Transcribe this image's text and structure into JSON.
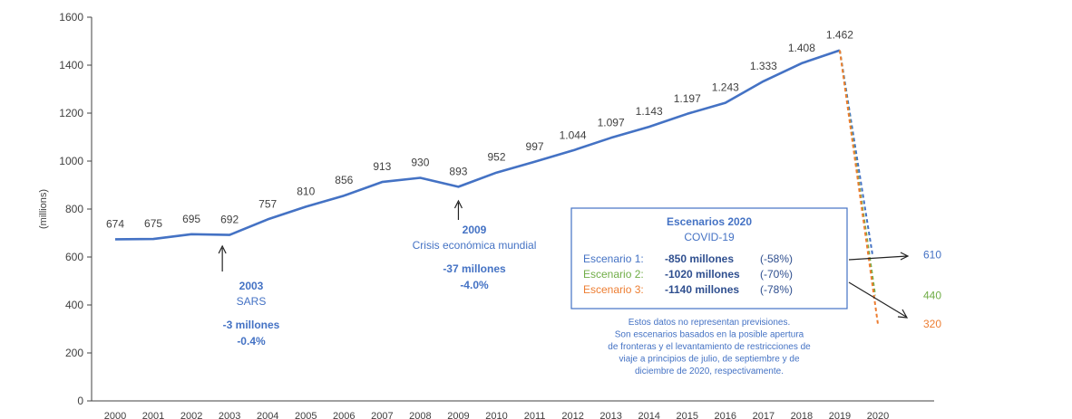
{
  "chart_data": {
    "type": "line",
    "ylabel": "(millions)",
    "ylim": [
      0,
      1600
    ],
    "yticks": [
      0,
      200,
      400,
      600,
      800,
      1000,
      1200,
      1400,
      1600
    ],
    "x": [
      "2000",
      "2001",
      "2002",
      "2003",
      "2004",
      "2005",
      "2006",
      "2007",
      "2008",
      "2009",
      "2010",
      "2011",
      "2012",
      "2013",
      "2014",
      "2015",
      "2016",
      "2017",
      "2018",
      "2019",
      "2020"
    ],
    "series": [
      {
        "values": [
          674,
          675,
          695,
          692,
          757,
          810,
          856,
          913,
          930,
          893,
          952,
          997,
          1044,
          1097,
          1143,
          1197,
          1243,
          1333,
          1408,
          1462,
          null
        ],
        "labels": [
          "674",
          "675",
          "695",
          "692",
          "757",
          "810",
          "856",
          "913",
          "930",
          "893",
          "952",
          "997",
          "1.044",
          "1.097",
          "1.143",
          "1.197",
          "1.243",
          "1.333",
          "1.408",
          "1.462",
          ""
        ],
        "color": "#4472c4"
      }
    ],
    "scenarios": [
      {
        "end_value": 610,
        "end_label": "610",
        "color": "#4472c4"
      },
      {
        "end_value": 440,
        "end_label": "440",
        "color": "#70ad47"
      },
      {
        "end_value": 320,
        "end_label": "320",
        "color": "#ed7d31"
      }
    ],
    "annotations": [
      {
        "year": "2003",
        "label": "2003",
        "event": "SARS",
        "change": "-3 millones",
        "pct": "-0.4%"
      },
      {
        "year": "2009",
        "label": "2009",
        "event": "Crisis económica mundial",
        "change": "-37 millones",
        "pct": "-4.0%"
      }
    ],
    "legend_box": {
      "title": "Escenarios 2020",
      "subtitle": "COVID-19",
      "rows": [
        {
          "name": "Escenario 1:",
          "value": "-850 millones",
          "pct": "(-58%)",
          "color": "#4472c4"
        },
        {
          "name": "Escenario 2:",
          "value": "-1020 millones",
          "pct": "(-70%)",
          "color": "#70ad47"
        },
        {
          "name": "Escenario 3:",
          "value": "-1140 millones",
          "pct": "(-78%)",
          "color": "#ed7d31"
        }
      ]
    },
    "note": [
      "Estos datos no representan previsiones.",
      "Son escenarios basados en la posible apertura",
      "de fronteras y el levantamiento de restricciones de",
      "viaje a principios de julio, de septiembre y de",
      "diciembre de 2020, respectivamente."
    ],
    "colors": {
      "axis": "#404040",
      "text": "#404040",
      "annot": "#4472c4"
    }
  }
}
